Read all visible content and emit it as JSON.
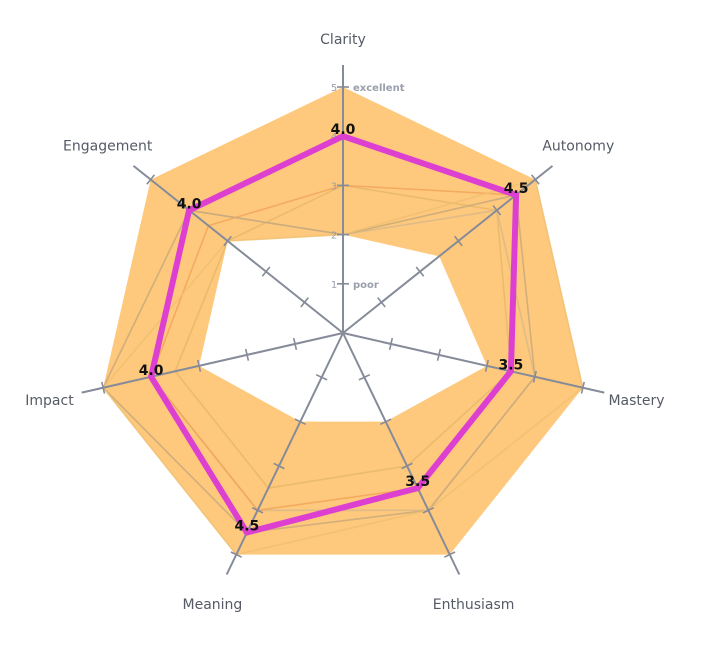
{
  "chart_data": {
    "type": "radar",
    "title": "",
    "axes": [
      "Clarity",
      "Autonomy",
      "Mastery",
      "Enthusiasm",
      "Meaning",
      "Impact",
      "Engagement"
    ],
    "range": [
      0,
      5
    ],
    "ticks": [
      1,
      2,
      3,
      4,
      5
    ],
    "tick_labels": [
      "1",
      "2",
      "3",
      "4",
      "5"
    ],
    "tick_annotations": {
      "1": "poor",
      "5": "excellent"
    },
    "band": {
      "upper": [
        5,
        5,
        5,
        5,
        5,
        5,
        5
      ],
      "lower": [
        2,
        2.5,
        3,
        2,
        2,
        3,
        3
      ]
    },
    "reference_series": [
      {
        "values": [
          3,
          4,
          3.5,
          3,
          3.5,
          3.5,
          3
        ]
      },
      {
        "values": [
          2,
          4,
          4,
          4,
          4,
          4,
          4
        ]
      },
      {
        "values": [
          3,
          4.5,
          3.5,
          3.5,
          4,
          4,
          3.5
        ]
      },
      {
        "values": [
          2,
          4.5,
          4,
          4,
          4.5,
          5,
          4
        ]
      },
      {
        "values": [
          2,
          5,
          5,
          4,
          5,
          5,
          3
        ]
      }
    ],
    "series": [
      {
        "values": [
          4.0,
          4.5,
          3.5,
          3.5,
          4.5,
          4.0,
          4.0
        ],
        "labels": [
          "4.0",
          "4.5",
          "3.5",
          "3.5",
          "4.5",
          "4.0",
          "4.0"
        ]
      }
    ],
    "colors": {
      "band": "#fdb44b",
      "reference": [
        "#e8b86a",
        "#d9b98a",
        "#f2a65a",
        "#c9a97a",
        "#f0c070"
      ],
      "series": "#dd3fd1",
      "axis": "#868b99",
      "tick_text": "#9a9fab"
    },
    "grid": false,
    "legend": "none"
  }
}
